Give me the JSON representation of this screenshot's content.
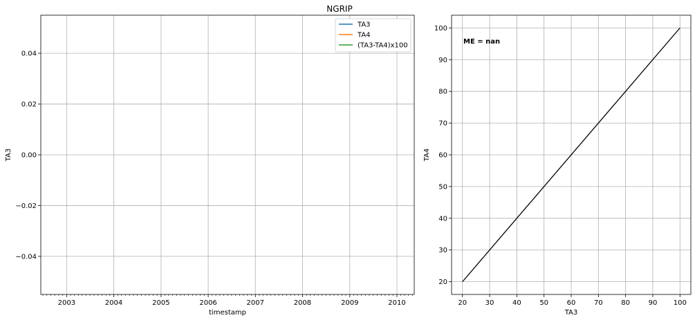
{
  "chart_data": [
    {
      "type": "line",
      "title": "NGRIP",
      "xlabel": "timestamp",
      "ylabel": "TA3",
      "x_ticks": [
        "2003",
        "2004",
        "2005",
        "2006",
        "2007",
        "2008",
        "2009",
        "2010"
      ],
      "y_ticks": [
        0.04,
        0.02,
        0.0,
        -0.02,
        -0.04
      ],
      "y_tick_labels": [
        "0.04",
        "0.02",
        "0.00",
        "−0.02",
        "−0.04"
      ],
      "ylim": [
        -0.055,
        0.055
      ],
      "xlim": [
        "2002-06-15",
        "2010-05-15"
      ],
      "grid": true,
      "legend": "top-right",
      "series": [
        {
          "name": "TA3",
          "color": "#1f77b4",
          "x": [],
          "y": []
        },
        {
          "name": "TA4",
          "color": "#ff7f0e",
          "x": [],
          "y": []
        },
        {
          "name": "(TA3-TA4)x100",
          "color": "#2ca02c",
          "x": [],
          "y": []
        }
      ]
    },
    {
      "type": "line",
      "title": "",
      "xlabel": "TA3",
      "ylabel": "TA4",
      "xlim": [
        16,
        104
      ],
      "ylim": [
        16,
        104
      ],
      "x_ticks": [
        20,
        30,
        40,
        50,
        60,
        70,
        80,
        90,
        100
      ],
      "y_ticks": [
        20,
        30,
        40,
        50,
        60,
        70,
        80,
        90,
        100
      ],
      "grid": true,
      "annotation": "ME = nan",
      "series": [
        {
          "color": "#000000",
          "x": [
            20,
            100
          ],
          "y": [
            20,
            100
          ]
        }
      ]
    }
  ]
}
